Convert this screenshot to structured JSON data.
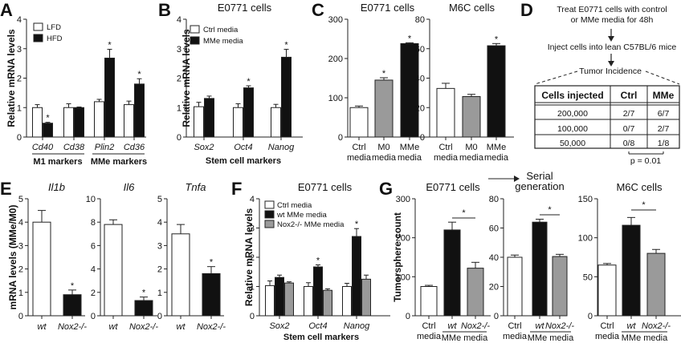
{
  "panels": {
    "A": "A",
    "B": "B",
    "C": "C",
    "D": "D",
    "E": "E",
    "F": "F",
    "G": "G"
  },
  "colors": {
    "white": "#ffffff",
    "black": "#111111",
    "gray": "#9a9a9a",
    "axis": "#222222"
  },
  "chart_data": [
    {
      "id": "A",
      "type": "bar",
      "title": "",
      "ylabel": "Relative mRNA levels",
      "ylim": [
        0,
        4
      ],
      "yticks": [
        0,
        1,
        2,
        3,
        4
      ],
      "categories": [
        "Cd40",
        "Cd38",
        "Plin2",
        "Cd36"
      ],
      "groups": [
        {
          "label": "M1 markers",
          "categories": [
            "Cd40",
            "Cd38"
          ]
        },
        {
          "label": "MMe markers",
          "categories": [
            "Plin2",
            "Cd36"
          ]
        }
      ],
      "legend": [
        "LFD",
        "HFD"
      ],
      "legend_position": "top-left",
      "series": [
        {
          "name": "LFD",
          "color": "white",
          "values": [
            1.0,
            1.0,
            1.2,
            1.1
          ],
          "errors": [
            0.1,
            0.13,
            0.08,
            0.12
          ],
          "sig": [
            false,
            false,
            false,
            false
          ]
        },
        {
          "name": "HFD",
          "color": "black",
          "values": [
            0.47,
            1.0,
            2.68,
            1.8
          ],
          "errors": [
            0.03,
            0.02,
            0.3,
            0.18
          ],
          "sig": [
            true,
            false,
            true,
            true
          ]
        }
      ]
    },
    {
      "id": "B",
      "type": "bar",
      "title": "E0771 cells",
      "ylabel": "Relative mRNA levels",
      "xlabel": "Stem cell markers",
      "ylim": [
        0,
        4
      ],
      "yticks": [
        0,
        1,
        2,
        3,
        4
      ],
      "categories": [
        "Sox2",
        "Oct4",
        "Nanog"
      ],
      "legend": [
        "Ctrl media",
        "MMe media"
      ],
      "legend_position": "top-left",
      "series": [
        {
          "name": "Ctrl media",
          "color": "white",
          "values": [
            1.03,
            1.0,
            1.0
          ],
          "errors": [
            0.15,
            0.13,
            0.11
          ],
          "sig": [
            false,
            false,
            false
          ]
        },
        {
          "name": "MMe media",
          "color": "black",
          "values": [
            1.31,
            1.67,
            2.71
          ],
          "errors": [
            0.08,
            0.07,
            0.27
          ],
          "sig": [
            false,
            true,
            true
          ]
        }
      ]
    },
    {
      "id": "C1",
      "type": "bar",
      "title": "E0771 cells",
      "ylabel": "Tumorsphere count",
      "ylim": [
        0,
        300
      ],
      "yticks": [
        0,
        100,
        200,
        300
      ],
      "categories": [
        "Ctrl media",
        "M0 media",
        "MMe media"
      ],
      "series": [
        {
          "name": "count",
          "colors": [
            "white",
            "gray",
            "black"
          ],
          "values": [
            75,
            145,
            238
          ],
          "errors": [
            4,
            6,
            2
          ],
          "sig": [
            false,
            true,
            true
          ]
        }
      ]
    },
    {
      "id": "C2",
      "type": "bar",
      "title": "M6C cells",
      "ylabel": "",
      "ylim": [
        0,
        80
      ],
      "yticks": [
        0,
        20,
        40,
        60,
        80
      ],
      "categories": [
        "Ctrl media",
        "M0 media",
        "MMe media"
      ],
      "series": [
        {
          "name": "count",
          "colors": [
            "white",
            "gray",
            "black"
          ],
          "values": [
            33,
            27.5,
            62
          ],
          "errors": [
            3.5,
            1.5,
            1.5
          ],
          "sig": [
            false,
            false,
            true
          ]
        }
      ]
    },
    {
      "id": "E1",
      "type": "bar",
      "title": "Il1b",
      "ylabel": "mRNA levels (MMe/M0)",
      "ylim": [
        0,
        5
      ],
      "yticks": [
        0,
        1,
        2,
        3,
        4,
        5
      ],
      "categories": [
        "wt",
        "Nox2-/-"
      ],
      "series": [
        {
          "name": "ratio",
          "colors": [
            "white",
            "black"
          ],
          "values": [
            4.0,
            0.9
          ],
          "errors": [
            0.5,
            0.2
          ],
          "sig": [
            false,
            true
          ]
        }
      ]
    },
    {
      "id": "E2",
      "type": "bar",
      "title": "Il6",
      "ylabel": "",
      "ylim": [
        0,
        10
      ],
      "yticks": [
        0,
        2,
        4,
        6,
        8,
        10
      ],
      "categories": [
        "wt",
        "Nox2-/-"
      ],
      "series": [
        {
          "name": "ratio",
          "colors": [
            "white",
            "black"
          ],
          "values": [
            7.8,
            1.3
          ],
          "errors": [
            0.4,
            0.3
          ],
          "sig": [
            false,
            true
          ]
        }
      ]
    },
    {
      "id": "E3",
      "type": "bar",
      "title": "Tnfa",
      "ylabel": "",
      "ylim": [
        0,
        5
      ],
      "yticks": [
        0,
        1,
        2,
        3,
        4,
        5
      ],
      "categories": [
        "wt",
        "Nox2-/-"
      ],
      "series": [
        {
          "name": "ratio",
          "colors": [
            "white",
            "black"
          ],
          "values": [
            3.5,
            1.8
          ],
          "errors": [
            0.4,
            0.3
          ],
          "sig": [
            false,
            true
          ]
        }
      ]
    },
    {
      "id": "F",
      "type": "bar",
      "title": "E0771 cells",
      "ylabel": "Relative mRNA levels",
      "xlabel": "Stem cell markers",
      "ylim": [
        0,
        4
      ],
      "yticks": [
        0,
        1,
        2,
        3,
        4
      ],
      "categories": [
        "Sox2",
        "Oct4",
        "Nanog"
      ],
      "legend": [
        "Ctrl media",
        "wt MMe media",
        "Nox2-/- MMe media"
      ],
      "legend_position": "top-left",
      "series": [
        {
          "name": "Ctrl media",
          "color": "white",
          "values": [
            1.03,
            1.0,
            1.0
          ],
          "errors": [
            0.16,
            0.13,
            0.11
          ],
          "sig": [
            false,
            false,
            false
          ]
        },
        {
          "name": "wt MMe media",
          "color": "black",
          "values": [
            1.31,
            1.67,
            2.71
          ],
          "errors": [
            0.08,
            0.07,
            0.27
          ],
          "sig": [
            false,
            true,
            true
          ]
        },
        {
          "name": "Nox2-/- MMe media",
          "color": "gray",
          "values": [
            1.12,
            0.87,
            1.25
          ],
          "errors": [
            0.04,
            0.05,
            0.14
          ],
          "sig": [
            false,
            false,
            false
          ]
        }
      ]
    },
    {
      "id": "G1",
      "type": "bar",
      "title": "E0771 cells",
      "ylabel": "Tumorsphere count",
      "ylim": [
        0,
        300
      ],
      "yticks": [
        0,
        100,
        200,
        300
      ],
      "categories": [
        "Ctrl media",
        "wt",
        "Nox2-/-"
      ],
      "group_label": "MMe media",
      "series": [
        {
          "name": "count",
          "colors": [
            "white",
            "black",
            "gray"
          ],
          "values": [
            75,
            220,
            122
          ],
          "errors": [
            3,
            20,
            15
          ],
          "sig": [
            false,
            false,
            false
          ]
        }
      ],
      "bracket": {
        "from": 1,
        "to": 2,
        "label": "*"
      }
    },
    {
      "id": "G2",
      "type": "bar",
      "title": "Serial generation",
      "ylabel": "",
      "ylim": [
        0,
        80
      ],
      "yticks": [
        0,
        20,
        40,
        60,
        80
      ],
      "categories": [
        "Ctrl media",
        "wt",
        "Nox2-/-"
      ],
      "group_label": "MMe media",
      "series": [
        {
          "name": "count",
          "colors": [
            "white",
            "black",
            "gray"
          ],
          "values": [
            40,
            64,
            40.5
          ],
          "errors": [
            1.5,
            2,
            1.5
          ],
          "sig": [
            false,
            false,
            false
          ]
        }
      ],
      "bracket": {
        "from": 1,
        "to": 2,
        "label": "*"
      }
    },
    {
      "id": "G3",
      "type": "bar",
      "title": "M6C cells",
      "ylabel": "",
      "ylim": [
        0,
        150
      ],
      "yticks": [
        0,
        50,
        100,
        150
      ],
      "categories": [
        "Ctrl media",
        "wt",
        "Nox2-/-"
      ],
      "group_label": "MMe media",
      "series": [
        {
          "name": "count",
          "colors": [
            "white",
            "black",
            "gray"
          ],
          "values": [
            65,
            116,
            80
          ],
          "errors": [
            2,
            10,
            5
          ],
          "sig": [
            false,
            false,
            false
          ]
        }
      ],
      "bracket": {
        "from": 1,
        "to": 2,
        "label": "*"
      }
    }
  ],
  "diagram_D": {
    "step1_line1": "Treat E0771 cells with control",
    "step1_line2": "or MMe media for 48h",
    "step2": "Inject cells into lean C57BL/6 mice",
    "step3": "Tumor Incidence",
    "table": {
      "headers": [
        "Cells injected",
        "Ctrl",
        "MMe"
      ],
      "rows": [
        [
          "200,000",
          "2/7",
          "6/7"
        ],
        [
          "100,000",
          "0/7",
          "2/7"
        ],
        [
          "50,000",
          "0/8",
          "1/8"
        ]
      ]
    },
    "pvalue": "p = 0.01"
  },
  "g_arrow_label": "Serial generation"
}
